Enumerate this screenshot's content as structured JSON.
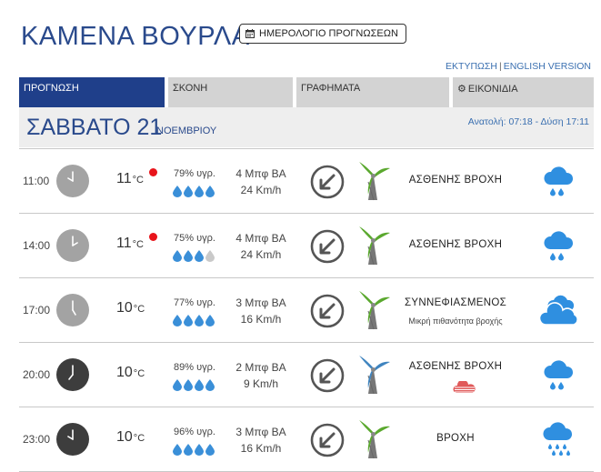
{
  "header": {
    "title": "ΚΑΜΕΝΑ ΒΟΥΡΛΑ",
    "calendar_button": "ΗΜΕΡΟΛΟΓΙΟ ΠΡΟΓΝΩΣΕΩΝ",
    "print_link": "ΕΚΤΥΠΩΣΗ",
    "separator": "|",
    "english_link": "ENGLISH VERSION"
  },
  "tabs": [
    {
      "label": "ΠΡΟΓΝΩΣΗ",
      "active": true
    },
    {
      "label": "ΣΚΟΝΗ",
      "active": false
    },
    {
      "label": "ΓΡΑΦΗΜΑΤΑ",
      "active": false
    },
    {
      "label": "ΕΙΚΟΝΙΔΙΑ",
      "active": false,
      "icon": "gear-icon"
    }
  ],
  "day": {
    "name": "ΣΑΒΒΑΤΟ 21",
    "month": "ΝΟΕΜΒΡΙΟΥ",
    "sun": "Ανατολή: 07:18 - Δύση 17:11"
  },
  "colors": {
    "accent": "#1f3f8a",
    "title": "#2a4a8c",
    "drop": "#3a8fd8",
    "drop_empty": "#c9c9c9",
    "red_dot": "#e8141b",
    "turbine_green": "#5aa82e",
    "turbine_blue": "#3f84bf",
    "cloud_blue": "#2f8fe0"
  },
  "forecast": [
    {
      "time": "11:00",
      "clock_dark": false,
      "temp": "11",
      "unit": "°C",
      "red_dot": true,
      "humidity": "79% υγρ.",
      "drops_filled": 4,
      "beaufort": "4 Μπφ ΒΑ",
      "kmh": "24 Km/h",
      "turbine": "green",
      "condition": "ΑΣΘΕΝΗΣ ΒΡΟΧΗ",
      "subcondition": "",
      "weather_icon": "light-rain-icon"
    },
    {
      "time": "14:00",
      "clock_dark": false,
      "temp": "11",
      "unit": "°C",
      "red_dot": true,
      "humidity": "75% υγρ.",
      "drops_filled": 3,
      "beaufort": "4 Μπφ ΒΑ",
      "kmh": "24 Km/h",
      "turbine": "green",
      "condition": "ΑΣΘΕΝΗΣ ΒΡΟΧΗ",
      "subcondition": "",
      "weather_icon": "light-rain-icon"
    },
    {
      "time": "17:00",
      "clock_dark": false,
      "temp": "10",
      "unit": "°C",
      "red_dot": false,
      "humidity": "77% υγρ.",
      "drops_filled": 4,
      "beaufort": "3 Μπφ ΒΑ",
      "kmh": "16 Km/h",
      "turbine": "green",
      "condition": "ΣΥΝΝΕΦΙΑΣΜΕΝΟΣ",
      "subcondition": "Μικρή πιθανότητα βροχής",
      "weather_icon": "cloudy-icon"
    },
    {
      "time": "20:00",
      "clock_dark": true,
      "temp": "10",
      "unit": "°C",
      "red_dot": false,
      "humidity": "89% υγρ.",
      "drops_filled": 4,
      "beaufort": "2 Μπφ ΒΑ",
      "kmh": "9 Km/h",
      "turbine": "blue",
      "condition": "ΑΣΘΕΝΗΣ ΒΡΟΧΗ",
      "subcondition": "",
      "weather_icon": "light-rain-icon",
      "extra_icon": "red-haze-icon"
    },
    {
      "time": "23:00",
      "clock_dark": true,
      "temp": "10",
      "unit": "°C",
      "red_dot": false,
      "humidity": "96% υγρ.",
      "drops_filled": 4,
      "beaufort": "3 Μπφ ΒΑ",
      "kmh": "16 Km/h",
      "turbine": "green",
      "condition": "ΒΡΟΧΗ",
      "subcondition": "",
      "weather_icon": "rain-icon"
    }
  ]
}
